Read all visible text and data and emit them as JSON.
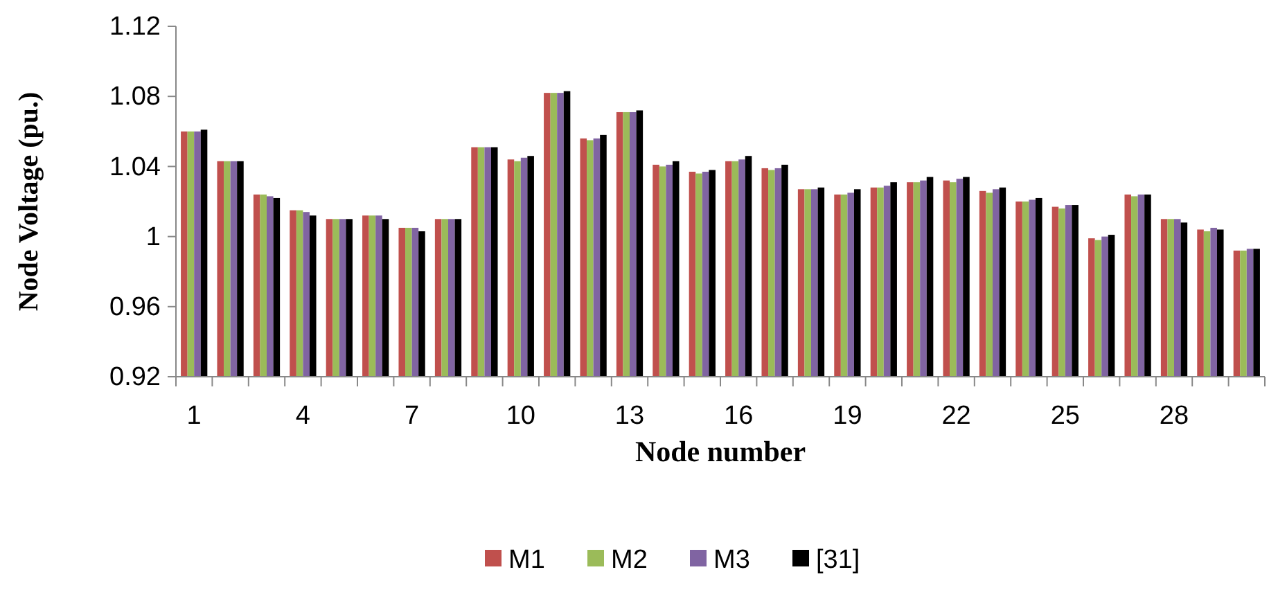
{
  "chart_data": {
    "type": "bar",
    "xlabel": "Node number",
    "ylabel": "Node Voltage (pu.)",
    "categories": [
      "1",
      null,
      null,
      "4",
      null,
      null,
      "7",
      null,
      null,
      "10",
      null,
      null,
      "13",
      null,
      null,
      "16",
      null,
      null,
      "19",
      null,
      null,
      "22",
      null,
      null,
      "25",
      null,
      null,
      "28",
      null,
      null
    ],
    "series": [
      {
        "name": "M1",
        "color": "#c0504d",
        "values": [
          1.06,
          1.043,
          1.024,
          1.015,
          1.01,
          1.012,
          1.005,
          1.01,
          1.051,
          1.044,
          1.082,
          1.056,
          1.071,
          1.041,
          1.037,
          1.043,
          1.039,
          1.027,
          1.024,
          1.028,
          1.031,
          1.032,
          1.026,
          1.02,
          1.017,
          0.999,
          1.024,
          1.01,
          1.004,
          0.992
        ]
      },
      {
        "name": "M2",
        "color": "#9bbb59",
        "values": [
          1.06,
          1.043,
          1.024,
          1.015,
          1.01,
          1.012,
          1.005,
          1.01,
          1.051,
          1.043,
          1.082,
          1.055,
          1.071,
          1.04,
          1.036,
          1.043,
          1.038,
          1.027,
          1.024,
          1.028,
          1.031,
          1.031,
          1.025,
          1.02,
          1.016,
          0.998,
          1.023,
          1.01,
          1.003,
          0.992
        ]
      },
      {
        "name": "M3",
        "color": "#8064a2",
        "values": [
          1.06,
          1.043,
          1.023,
          1.014,
          1.01,
          1.012,
          1.005,
          1.01,
          1.051,
          1.045,
          1.082,
          1.056,
          1.071,
          1.041,
          1.037,
          1.044,
          1.039,
          1.027,
          1.025,
          1.029,
          1.032,
          1.033,
          1.027,
          1.021,
          1.018,
          1.0,
          1.024,
          1.01,
          1.005,
          0.993
        ]
      },
      {
        "name": "[31]",
        "color": "#000000",
        "values": [
          1.061,
          1.043,
          1.022,
          1.012,
          1.01,
          1.01,
          1.003,
          1.01,
          1.051,
          1.046,
          1.083,
          1.058,
          1.072,
          1.043,
          1.038,
          1.046,
          1.041,
          1.028,
          1.027,
          1.031,
          1.034,
          1.034,
          1.028,
          1.022,
          1.018,
          1.001,
          1.024,
          1.008,
          1.004,
          0.993
        ]
      }
    ],
    "ylim": [
      0.92,
      1.12
    ],
    "yticks": [
      0.92,
      0.96,
      1,
      1.04,
      1.08,
      1.12
    ],
    "legend": "bottom"
  }
}
